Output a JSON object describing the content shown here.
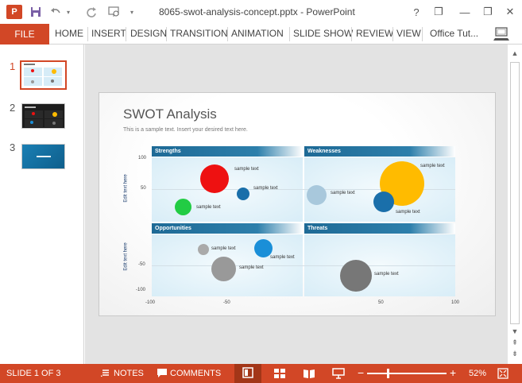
{
  "window": {
    "app_icon": "P",
    "title": "8065-swot-analysis-concept.pptx - PowerPoint",
    "controls": {
      "help": "?",
      "minimize": "—",
      "restore": "❐",
      "close": "✕"
    }
  },
  "ribbon": {
    "file": "FILE",
    "tabs": [
      "HOME",
      "INSERT",
      "DESIGN",
      "TRANSITION",
      "ANIMATION",
      "SLIDE SHOW",
      "REVIEW",
      "VIEW"
    ],
    "account": "Office Tut..."
  },
  "thumbnails": {
    "numbers": [
      "1",
      "2",
      "3"
    ],
    "selected": 1
  },
  "slide": {
    "title": "SWOT Analysis",
    "subtitle": "This is a sample text. Insert your desired text here.",
    "y_axis_label": "Edit text here",
    "quadrants": [
      "Strengths",
      "Weaknesses",
      "Opportunities",
      "Threats"
    ],
    "y_ticks_top": [
      "100",
      "50"
    ],
    "y_ticks_bottom": [
      "-50",
      "-100"
    ],
    "x_ticks": [
      "-100",
      "-50",
      "50",
      "100"
    ],
    "bubble_label": "sample text",
    "bubbles": [
      {
        "quadrant": "Strengths",
        "color": "#ee1111"
      },
      {
        "quadrant": "Strengths",
        "color": "#1a6faa"
      },
      {
        "quadrant": "Strengths",
        "color": "#22cc44"
      },
      {
        "quadrant": "Weaknesses",
        "color": "#ffbb00"
      },
      {
        "quadrant": "Weaknesses",
        "color": "#a8c8dc"
      },
      {
        "quadrant": "Weaknesses",
        "color": "#1a6faa"
      },
      {
        "quadrant": "Opportunities",
        "color": "#aaaaaa"
      },
      {
        "quadrant": "Opportunities",
        "color": "#1a8fd8"
      },
      {
        "quadrant": "Opportunities",
        "color": "#999999"
      },
      {
        "quadrant": "Threats",
        "color": "#777777"
      }
    ]
  },
  "statusbar": {
    "slide_info": "SLIDE 1 OF 3",
    "notes": "NOTES",
    "comments": "COMMENTS",
    "zoom_minus": "−",
    "zoom_plus": "+",
    "zoom_percent": "52%",
    "zoom_level": 0.52
  },
  "colors": {
    "accent": "#d24726",
    "quad_header": "#1e6a96"
  }
}
